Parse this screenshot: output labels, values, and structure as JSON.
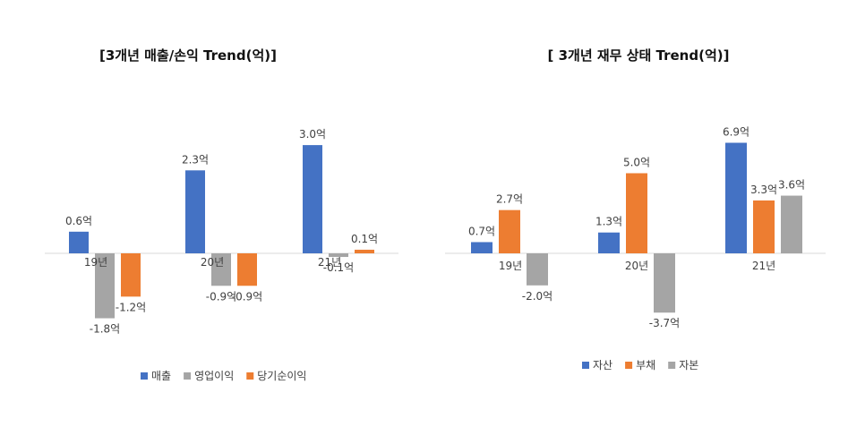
{
  "chart_data": [
    {
      "type": "bar",
      "title": "[3개년 매출/손익 Trend(억)]",
      "categories": [
        "19년",
        "20년",
        "21년"
      ],
      "unit_suffix": "억",
      "series": [
        {
          "name": "매출",
          "color": "#4472C4",
          "values": [
            0.6,
            2.3,
            3.0
          ]
        },
        {
          "name": "영업이익",
          "color": "#A5A5A5",
          "values": [
            -1.8,
            -0.9,
            -0.1
          ]
        },
        {
          "name": "당기순이익",
          "color": "#ED7D31",
          "values": [
            -1.2,
            -0.9,
            0.1
          ]
        }
      ],
      "ylim": [
        -1.8,
        3.0
      ],
      "legend": "bottom",
      "grid": false
    },
    {
      "type": "bar",
      "title": "[ 3개년 재무 상태 Trend(억)]",
      "categories": [
        "19년",
        "20년",
        "21년"
      ],
      "unit_suffix": "억",
      "series": [
        {
          "name": "자산",
          "color": "#4472C4",
          "values": [
            0.7,
            1.3,
            6.9
          ]
        },
        {
          "name": "부채",
          "color": "#ED7D31",
          "values": [
            2.7,
            5.0,
            3.3
          ]
        },
        {
          "name": "자본",
          "color": "#A5A5A5",
          "values": [
            -2.0,
            -3.7,
            3.6
          ]
        }
      ],
      "ylim": [
        -3.7,
        6.9
      ],
      "legend": "bottom",
      "grid": false
    }
  ]
}
